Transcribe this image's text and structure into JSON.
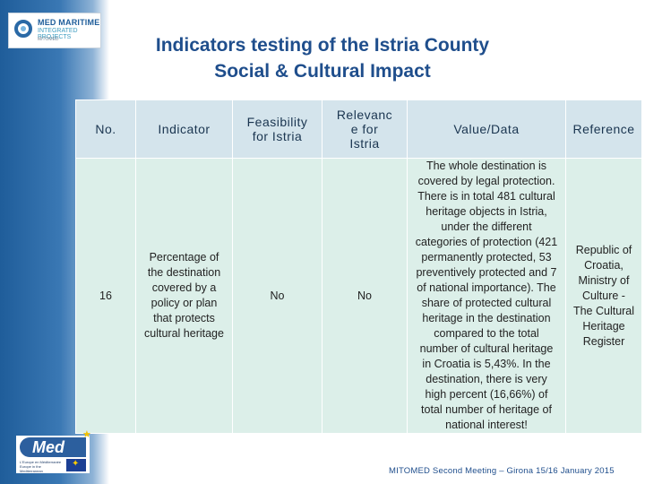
{
  "logo": {
    "line1": "MED MARITIME",
    "line2": "INTEGRATED PROJECTS",
    "line3": "MITOMED"
  },
  "title": {
    "line1": "Indicators testing of the Istria County",
    "line2": "Social & Cultural Impact"
  },
  "table": {
    "headers": {
      "no": "No.",
      "indicator": "Indicator",
      "feasibility_1": "Feasibility",
      "feasibility_2": "for Istria",
      "relevance_1": "Relevanc",
      "relevance_2": "e for",
      "relevance_3": "Istria",
      "value": "Value/Data",
      "reference": "Reference"
    },
    "row": {
      "no": "16",
      "indicator": [
        "Percentage of",
        "the destination",
        "covered by a",
        "policy or plan",
        "that protects",
        "cultural heritage"
      ],
      "feasibility": "No",
      "relevance": "No",
      "value": [
        "The whole destination is",
        "covered by legal protection.",
        "There is in total 481 cultural",
        "heritage objects in Istria,",
        "under the different",
        "categories of protection (421",
        "permanently protected, 53",
        "preventively protected and 7",
        "of national importance). The",
        "share of protected cultural",
        "heritage in the destination",
        "compared to the total",
        "number of cultural heritage",
        "in Croatia is 5,43%. In the",
        "destination, there is very",
        "high percent (16,66%) of",
        "total number of heritage of",
        "national interest!"
      ],
      "reference": [
        "Republic of",
        "Croatia,",
        "Ministry of",
        "Culture -",
        "The Cultural",
        "Heritage",
        "Register"
      ]
    }
  },
  "eu_logo": {
    "text": "Med",
    "subtext": "L'Europe en Méditerranée Europe in the Mediterranean"
  },
  "footer": "MITOMED Second Meeting – Girona 15/16 January 2015"
}
